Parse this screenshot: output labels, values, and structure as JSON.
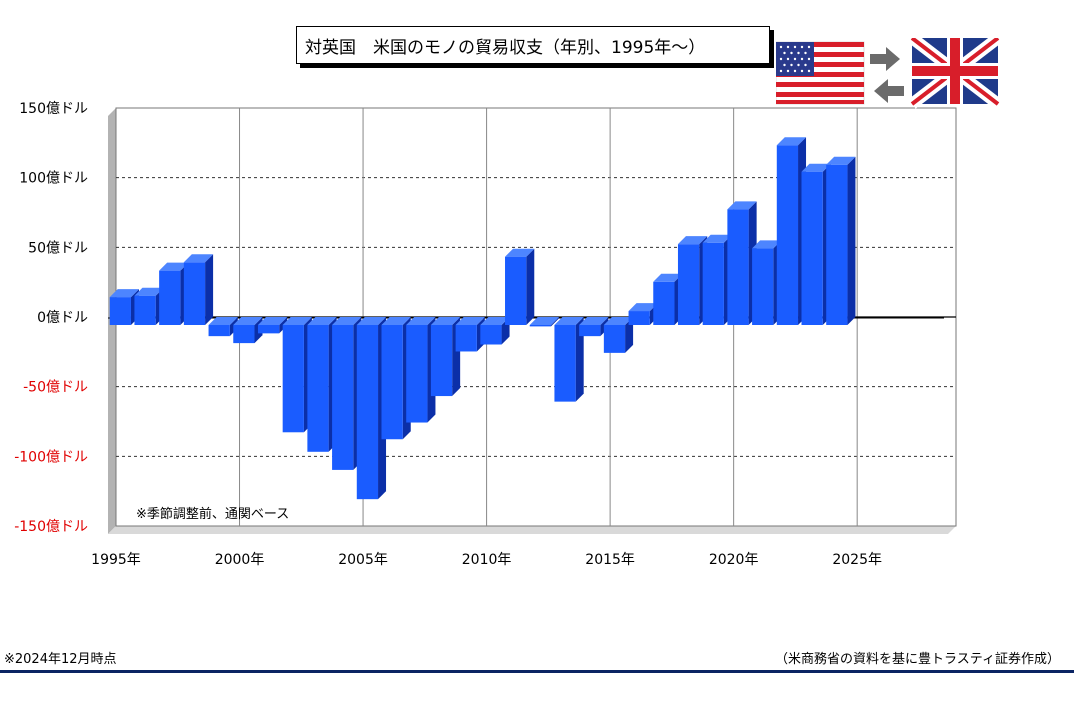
{
  "title": "対英国　米国のモノの貿易収支（年別、1995年～）",
  "annotation": "※季節調整前、通関ベース",
  "footnote_left": "※2024年12月時点",
  "footnote_right": "（米商務省の資料を基に豊トラスティ証券作成）",
  "flags": {
    "left": "us-flag-icon",
    "right": "uk-flag-icon",
    "arrows": "exchange-arrows-icon"
  },
  "colors": {
    "bar": "#1a5cff",
    "bar_top": "#4d85ff",
    "bar_side": "#0b2fa8",
    "negative_label": "#e00000",
    "wall_shadow": "#b3b3b3",
    "footer_rule": "#0a2463"
  },
  "chart_data": {
    "type": "bar",
    "x": [
      1995,
      1996,
      1997,
      1998,
      1999,
      2000,
      2001,
      2002,
      2003,
      2004,
      2005,
      2006,
      2007,
      2008,
      2009,
      2010,
      2011,
      2012,
      2013,
      2014,
      2015,
      2016,
      2017,
      2018,
      2019,
      2020,
      2021,
      2022,
      2023,
      2024
    ],
    "values": [
      20,
      21,
      39,
      45,
      -8,
      -13,
      -6,
      -77,
      -91,
      -104,
      -125,
      -82,
      -70,
      -51,
      -19,
      -14,
      49,
      -1,
      -55,
      -8,
      -20,
      10,
      31,
      58,
      59,
      83,
      55,
      129,
      110,
      115
    ],
    "unit": "億ドル",
    "ylim": [
      -150,
      150
    ],
    "yticks": [
      {
        "value": 150,
        "label": "150億ドル"
      },
      {
        "value": 100,
        "label": "100億ドル"
      },
      {
        "value": 50,
        "label": "50億ドル"
      },
      {
        "value": 0,
        "label": "0億ドル"
      },
      {
        "value": -50,
        "label": "-50億ドル"
      },
      {
        "value": -100,
        "label": "-100億ドル"
      },
      {
        "value": -150,
        "label": "-150億ドル"
      }
    ],
    "xlim": [
      1995,
      2029
    ],
    "xticks": [
      {
        "value": 1995,
        "label": "1995年"
      },
      {
        "value": 2000,
        "label": "2000年"
      },
      {
        "value": 2005,
        "label": "2005年"
      },
      {
        "value": 2010,
        "label": "2010年"
      },
      {
        "value": 2015,
        "label": "2015年"
      },
      {
        "value": 2020,
        "label": "2020年"
      },
      {
        "value": 2025,
        "label": "2025年"
      }
    ],
    "grid": true,
    "legend": "none"
  }
}
